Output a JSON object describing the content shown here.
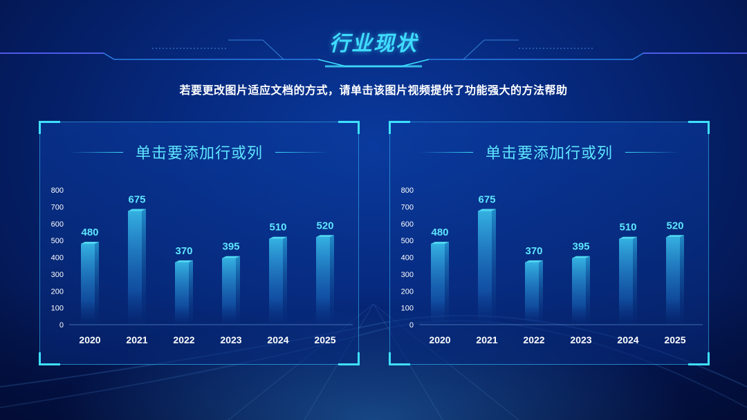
{
  "header": {
    "title": "行业现状",
    "subtitle": "若要更改图片适应文档的方式，请单击该图片视频提供了功能强大的方法帮助"
  },
  "colors": {
    "accent": "#3fe0ff",
    "bar_top": "#4fd8f2",
    "value_label": "#5fe6ff"
  },
  "chart_data": [
    {
      "type": "bar",
      "title": "单击要添加行或列",
      "categories": [
        "2020",
        "2021",
        "2022",
        "2023",
        "2024",
        "2025"
      ],
      "values": [
        480,
        675,
        370,
        395,
        510,
        520
      ],
      "ylim": [
        0,
        800
      ],
      "yticks": [
        "0",
        "100",
        "200",
        "300",
        "400",
        "500",
        "600",
        "700",
        "800"
      ],
      "xlabel": "",
      "ylabel": "",
      "grid": false,
      "data_labels": true
    },
    {
      "type": "bar",
      "title": "单击要添加行或列",
      "categories": [
        "2020",
        "2021",
        "2022",
        "2023",
        "2024",
        "2025"
      ],
      "values": [
        480,
        675,
        370,
        395,
        510,
        520
      ],
      "ylim": [
        0,
        800
      ],
      "yticks": [
        "0",
        "100",
        "200",
        "300",
        "400",
        "500",
        "600",
        "700",
        "800"
      ],
      "xlabel": "",
      "ylabel": "",
      "grid": false,
      "data_labels": true
    }
  ]
}
